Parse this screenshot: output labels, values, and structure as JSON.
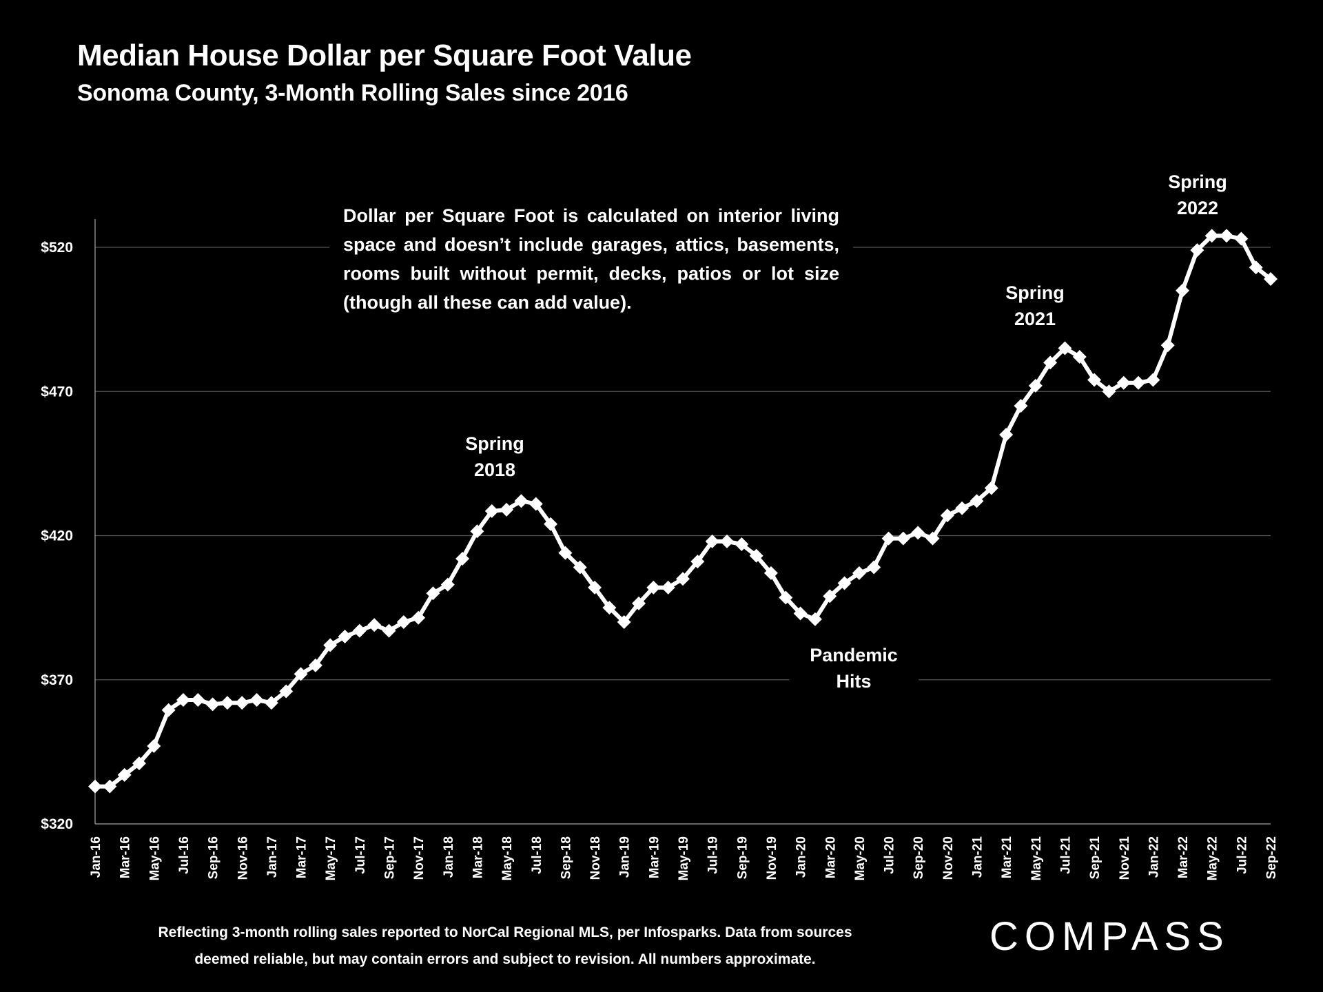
{
  "title": "Median House Dollar per Square Foot Value",
  "subtitle": "Sonoma County, 3-Month Rolling Sales since 2016",
  "note": "Dollar per Square Foot is calculated on interior living space and doesn’t include garages, attics, basements, rooms built without permit, decks, patios or lot size (though all these can add value).",
  "footer_line1": "Reflecting 3-month rolling sales reported to NorCal Regional MLS, per Infosparks. Data from sources",
  "footer_line2": "deemed reliable, but may contain errors and subject to revision. All numbers approximate.",
  "logo": "COMPASS",
  "colors": {
    "background": "#000000",
    "line": "#ffffff",
    "grid": "#555555"
  },
  "chart_data": {
    "type": "line",
    "title": "Median House Dollar per Square Foot Value",
    "subtitle": "Sonoma County, 3-Month Rolling Sales since 2016",
    "ylim": [
      320,
      530
    ],
    "yticks": [
      320,
      370,
      420,
      470,
      520
    ],
    "ytick_labels": [
      "$320",
      "$370",
      "$420",
      "$470",
      "$520"
    ],
    "grid": true,
    "marker": "diamond",
    "x": [
      "Jan-16",
      "Feb-16",
      "Mar-16",
      "Apr-16",
      "May-16",
      "Jun-16",
      "Jul-16",
      "Aug-16",
      "Sep-16",
      "Oct-16",
      "Nov-16",
      "Dec-16",
      "Jan-17",
      "Feb-17",
      "Mar-17",
      "Apr-17",
      "May-17",
      "Jun-17",
      "Jul-17",
      "Aug-17",
      "Sep-17",
      "Oct-17",
      "Nov-17",
      "Dec-17",
      "Jan-18",
      "Feb-18",
      "Mar-18",
      "Apr-18",
      "May-18",
      "Jun-18",
      "Jul-18",
      "Aug-18",
      "Sep-18",
      "Oct-18",
      "Nov-18",
      "Dec-18",
      "Jan-19",
      "Feb-19",
      "Mar-19",
      "Apr-19",
      "May-19",
      "Jun-19",
      "Jul-19",
      "Aug-19",
      "Sep-19",
      "Oct-19",
      "Nov-19",
      "Dec-19",
      "Jan-20",
      "Feb-20",
      "Mar-20",
      "Apr-20",
      "May-20",
      "Jun-20",
      "Jul-20",
      "Aug-20",
      "Sep-20",
      "Oct-20",
      "Nov-20",
      "Dec-20",
      "Jan-21",
      "Feb-21",
      "Mar-21",
      "Apr-21",
      "May-21",
      "Jun-21",
      "Jul-21",
      "Aug-21",
      "Sep-21",
      "Oct-21",
      "Nov-21",
      "Dec-21",
      "Jan-22",
      "Feb-22",
      "Mar-22",
      "Apr-22",
      "May-22",
      "Jun-22",
      "Jul-22",
      "Aug-22",
      "Sep-22"
    ],
    "values": [
      333,
      333,
      337,
      341,
      347,
      359.5,
      363,
      363,
      361.5,
      362,
      362,
      363,
      362,
      366,
      372,
      375,
      382,
      385,
      387,
      389,
      387,
      390,
      391.5,
      400,
      403,
      412,
      421.5,
      428.5,
      429,
      432,
      431,
      424,
      414,
      409,
      402,
      395,
      390,
      396.5,
      402,
      402,
      405,
      411,
      418,
      418,
      417,
      413,
      407,
      398.5,
      393,
      391,
      399,
      403.5,
      407,
      409,
      419,
      419,
      421,
      419,
      427,
      429.5,
      432,
      436.5,
      455,
      465,
      472,
      480,
      485,
      482,
      474,
      470,
      473,
      473,
      474,
      486,
      505,
      519,
      524,
      524,
      523,
      513,
      509
    ],
    "annotations": [
      {
        "text": "Spring\n2018",
        "x": "Jun-18"
      },
      {
        "text": "Spring\n2021",
        "x": "Jul-21"
      },
      {
        "text": "Spring\n2022",
        "x": "May-22"
      },
      {
        "text": "Pandemic\nHits",
        "x": "Mar-20"
      }
    ]
  }
}
